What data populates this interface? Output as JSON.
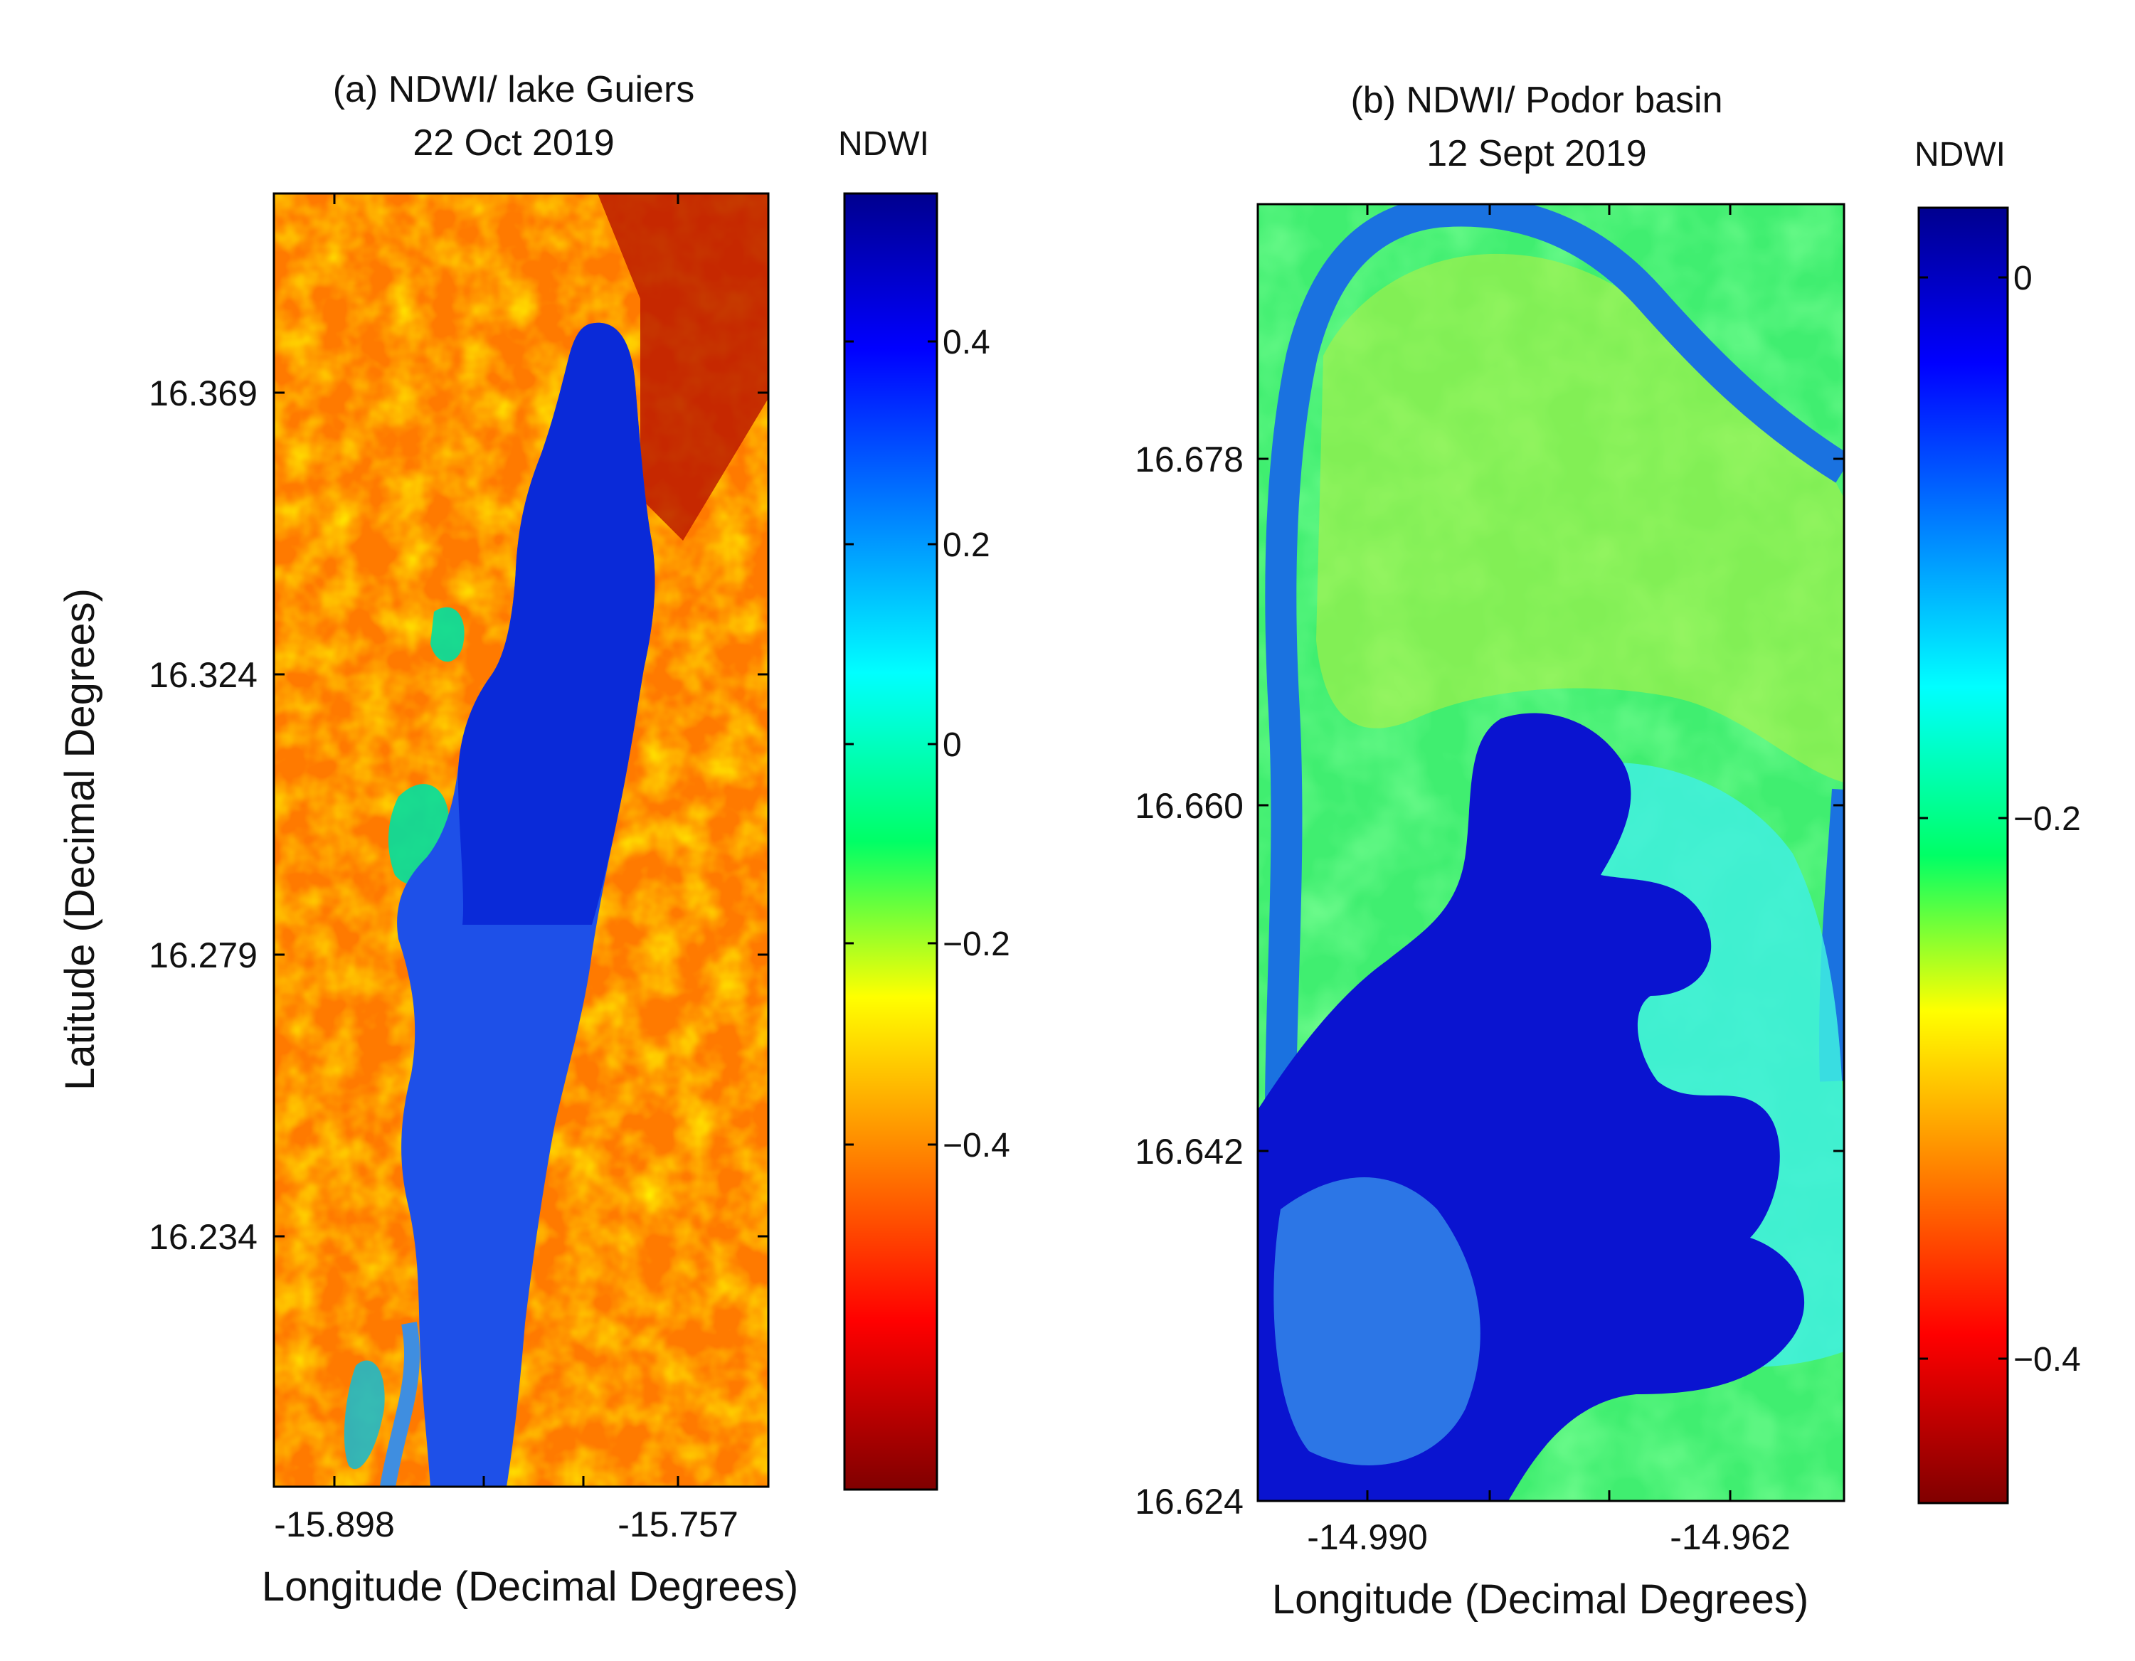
{
  "chart_data": [
    {
      "type": "heatmap",
      "title": "(a) NDWI/ lake Guiers",
      "subtitle": "22 Oct 2019",
      "xlabel": "Longitude (Decimal Degrees)",
      "ylabel": "Latitude (Decimal Degrees)",
      "x_ticks": [
        "-15.898",
        "-15.757"
      ],
      "y_ticks": [
        "16.369",
        "16.324",
        "16.279",
        "16.234"
      ],
      "colorbar": {
        "label": "NDWI",
        "ticks": [
          "0.4",
          "0.2",
          "0",
          "−0.2",
          "−0.4"
        ]
      }
    },
    {
      "type": "heatmap",
      "title": "(b) NDWI/ Podor basin",
      "subtitle": "12 Sept 2019",
      "xlabel": "Longitude (Decimal Degrees)",
      "ylabel": "",
      "x_ticks": [
        "-14.990",
        "-14.962"
      ],
      "y_ticks": [
        "16.678",
        "16.660",
        "16.642",
        "16.624"
      ],
      "colorbar": {
        "label": "NDWI",
        "ticks": [
          "0",
          "−0.2",
          "−0.4"
        ]
      }
    }
  ]
}
